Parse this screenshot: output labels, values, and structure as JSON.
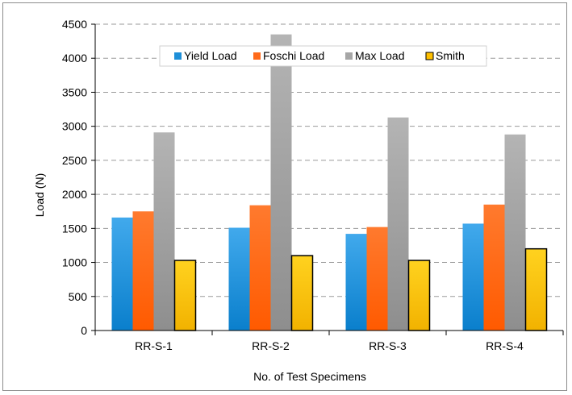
{
  "chart_data": {
    "type": "bar",
    "title": "",
    "xlabel": "No. of Test Specimens",
    "ylabel": "Load (N)",
    "ylim": [
      0,
      4500
    ],
    "yticks": [
      0,
      500,
      1000,
      1500,
      2000,
      2500,
      3000,
      3500,
      4000,
      4500
    ],
    "grid": "horizontal dashed",
    "legend_position": "top",
    "categories": [
      "RR-S-1",
      "RR-S-2",
      "RR-S-3",
      "RR-S-4"
    ],
    "series": [
      {
        "name": "Yield Load",
        "color": "#1e8fd8",
        "values": [
          1660,
          1510,
          1420,
          1570
        ]
      },
      {
        "name": "Foschi Load",
        "color": "#ff6a1a",
        "values": [
          1750,
          1840,
          1520,
          1850
        ]
      },
      {
        "name": "Max Load",
        "color": "#a6a6a6",
        "values": [
          2910,
          4350,
          3130,
          2880
        ]
      },
      {
        "name": "Smith",
        "color": "#ffc000",
        "values": [
          1030,
          1100,
          1030,
          1200
        ]
      }
    ]
  }
}
